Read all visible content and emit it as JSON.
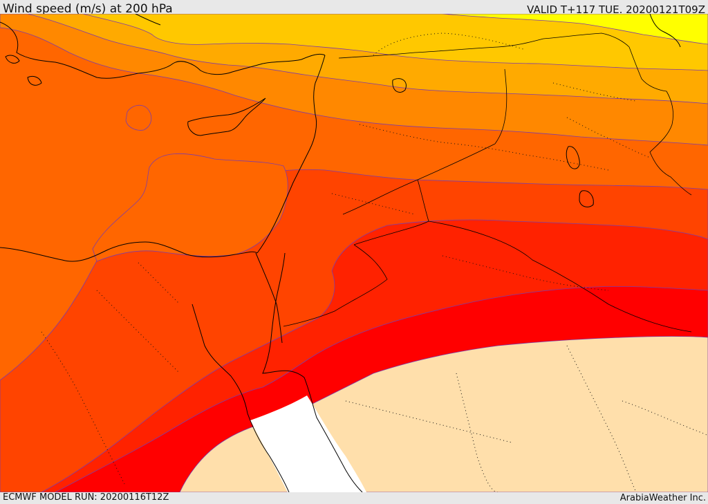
{
  "header": {
    "title": "Wind speed (m/s) at 200 hPa",
    "valid_time": "VALID T+117 TUE. 20200121T09Z"
  },
  "footer": {
    "model_run": "ECMWF MODEL RUN: 20200116T12Z",
    "credit": "ArabiaWeather Inc."
  },
  "colors": {
    "band_yellow": "#ffff00",
    "band_light_amber": "#ffc800",
    "band_amber": "#ffaa00",
    "band_dark_orange": "#ff8800",
    "band_orange": "#ff6600",
    "band_red_orange": "#ff4400",
    "band_scarlet": "#ff2200",
    "band_red": "#ff0000",
    "band_low_speed": "#ffdfab",
    "band_no_data": "#ffffff",
    "background": "#e8e8e8"
  }
}
